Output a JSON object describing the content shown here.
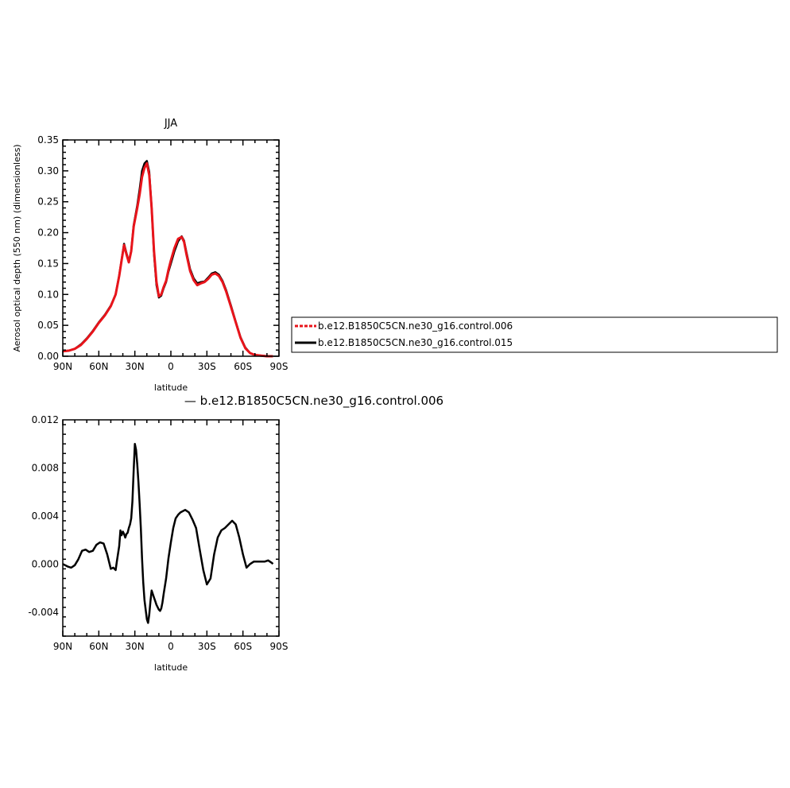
{
  "colors": {
    "control_006": "#e8141b",
    "control_015": "#000000",
    "difference": "#000000",
    "axes": "#000000"
  },
  "legend": {
    "entries": [
      {
        "label": "b.e12.B1850C5CN.ne30_g16.control.006",
        "color": "#e8141b",
        "style": "dashed"
      },
      {
        "label": "b.e12.B1850C5CN.ne30_g16.control.015",
        "color": "#000000",
        "style": "solid"
      }
    ]
  },
  "chart_data": [
    {
      "type": "line",
      "title": "JJA",
      "xlabel": "latitude",
      "ylabel": "Aerosol optical depth (550 nm) (dimensionless)",
      "xlim": [
        90,
        -90
      ],
      "ylim": [
        0,
        0.35
      ],
      "xticks": [
        90,
        60,
        30,
        0,
        -30,
        -60,
        -90
      ],
      "xtick_labels": [
        "90N",
        "60N",
        "30N",
        "0",
        "30S",
        "60S",
        "90S"
      ],
      "yticks": [
        0,
        0.05,
        0.1,
        0.15,
        0.2,
        0.25,
        0.3,
        0.35
      ],
      "ytick_labels": [
        "0.00",
        "0.05",
        "0.10",
        "0.15",
        "0.20",
        "0.25",
        "0.30",
        "0.35"
      ],
      "series": [
        {
          "name": "b.e12.B1850C5CN.ne30_g16.control.006",
          "color": "#e8141b",
          "x": [
            90,
            85,
            80,
            75,
            70,
            65,
            60,
            55,
            50,
            46,
            43,
            41,
            39,
            37,
            35,
            33,
            31,
            28,
            26,
            24,
            22,
            20,
            18,
            16,
            14,
            12,
            10,
            8,
            6,
            4,
            2,
            0,
            -3,
            -6,
            -9,
            -11,
            -13,
            -16,
            -19,
            -22,
            -25,
            -28,
            -31,
            -34,
            -37,
            -40,
            -43,
            -46,
            -50,
            -54,
            -58,
            -62,
            -66,
            -70,
            -75,
            -80,
            -85
          ],
          "y": [
            0.008,
            0.009,
            0.012,
            0.018,
            0.028,
            0.04,
            0.054,
            0.066,
            0.081,
            0.1,
            0.13,
            0.155,
            0.18,
            0.165,
            0.152,
            0.17,
            0.21,
            0.24,
            0.262,
            0.29,
            0.305,
            0.312,
            0.293,
            0.24,
            0.17,
            0.12,
            0.097,
            0.1,
            0.112,
            0.122,
            0.14,
            0.155,
            0.175,
            0.19,
            0.193,
            0.185,
            0.165,
            0.138,
            0.123,
            0.115,
            0.118,
            0.12,
            0.125,
            0.132,
            0.134,
            0.13,
            0.12,
            0.105,
            0.08,
            0.055,
            0.03,
            0.013,
            0.005,
            0.002,
            0.001,
            0.0,
            0.0
          ]
        },
        {
          "name": "b.e12.B1850C5CN.ne30_g16.control.015",
          "color": "#000000",
          "x": [
            90,
            85,
            80,
            75,
            70,
            65,
            60,
            55,
            50,
            46,
            43,
            41,
            39,
            37,
            35,
            33,
            31,
            28,
            26,
            24,
            22,
            20,
            18,
            16,
            14,
            12,
            10,
            8,
            6,
            4,
            2,
            0,
            -3,
            -6,
            -9,
            -11,
            -13,
            -16,
            -19,
            -22,
            -25,
            -28,
            -31,
            -34,
            -37,
            -40,
            -43,
            -46,
            -50,
            -54,
            -58,
            -62,
            -66,
            -70,
            -75,
            -80,
            -85
          ],
          "y": [
            0.008,
            0.009,
            0.012,
            0.019,
            0.029,
            0.041,
            0.055,
            0.067,
            0.082,
            0.1,
            0.131,
            0.156,
            0.182,
            0.167,
            0.153,
            0.171,
            0.212,
            0.244,
            0.27,
            0.3,
            0.312,
            0.316,
            0.298,
            0.24,
            0.165,
            0.115,
            0.095,
            0.098,
            0.11,
            0.12,
            0.137,
            0.15,
            0.17,
            0.186,
            0.194,
            0.187,
            0.168,
            0.141,
            0.126,
            0.118,
            0.12,
            0.121,
            0.127,
            0.134,
            0.136,
            0.132,
            0.122,
            0.107,
            0.082,
            0.056,
            0.031,
            0.014,
            0.005,
            0.002,
            0.001,
            0.0,
            0.0
          ]
        }
      ]
    },
    {
      "type": "line",
      "title": "— b.e12.B1850C5CN.ne30_g16.control.006",
      "xlabel": "latitude",
      "xlim": [
        90,
        -90
      ],
      "ylim": [
        -0.006,
        0.012
      ],
      "xticks": [
        90,
        60,
        30,
        0,
        -30,
        -60,
        -90
      ],
      "xtick_labels": [
        "90N",
        "60N",
        "30N",
        "0",
        "30S",
        "60S",
        "90S"
      ],
      "yticks": [
        -0.004,
        0,
        0.004,
        0.008,
        0.012
      ],
      "ytick_labels": [
        "-0.004",
        "0.000",
        "0.004",
        "0.008",
        "0.012"
      ],
      "series": [
        {
          "color": "#000000",
          "x": [
            90,
            86,
            83,
            80,
            77,
            74,
            71,
            68,
            65,
            62,
            59,
            56,
            53,
            50,
            48,
            46,
            45,
            43,
            42,
            41,
            40,
            39,
            38,
            37,
            36,
            35,
            34,
            33,
            32,
            31,
            30,
            29,
            28,
            27,
            26,
            25,
            24,
            23,
            22,
            21,
            20,
            19,
            18,
            17,
            16,
            15,
            14,
            13,
            12,
            11,
            10,
            9,
            8,
            7,
            6,
            4,
            2,
            0,
            -2,
            -4,
            -6,
            -8,
            -10,
            -12,
            -15,
            -18,
            -21,
            -24,
            -27,
            -30,
            -33,
            -36,
            -39,
            -42,
            -45,
            -48,
            -51,
            -54,
            -57,
            -60,
            -63,
            -66,
            -69,
            -72,
            -75,
            -78,
            -81,
            -84,
            -85
          ],
          "y": [
            0.0,
            -0.0002,
            -0.0003,
            -0.0001,
            0.0004,
            0.0011,
            0.0012,
            0.001,
            0.0011,
            0.0016,
            0.0018,
            0.0017,
            0.0008,
            -0.0004,
            -0.0003,
            -0.0005,
            0.0002,
            0.0015,
            0.0028,
            0.0024,
            0.0027,
            0.0025,
            0.0022,
            0.0025,
            0.0026,
            0.003,
            0.0033,
            0.0038,
            0.0052,
            0.0078,
            0.01,
            0.0095,
            0.0083,
            0.0068,
            0.005,
            0.003,
            0.0005,
            -0.0015,
            -0.003,
            -0.0038,
            -0.0046,
            -0.0049,
            -0.0042,
            -0.0031,
            -0.0022,
            -0.0025,
            -0.0028,
            -0.0031,
            -0.0034,
            -0.0036,
            -0.0038,
            -0.0039,
            -0.0037,
            -0.0032,
            -0.0025,
            -0.0012,
            0.0005,
            0.0018,
            0.003,
            0.0038,
            0.0041,
            0.0043,
            0.0044,
            0.0045,
            0.0043,
            0.0037,
            0.003,
            0.0012,
            -0.0005,
            -0.0017,
            -0.0012,
            0.0008,
            0.0022,
            0.0028,
            0.003,
            0.0033,
            0.0036,
            0.0033,
            0.0022,
            0.0008,
            -0.0003,
            0.0,
            0.0002,
            0.0002,
            0.0002,
            0.0002,
            0.0003,
            0.0001,
            0.0
          ]
        }
      ]
    }
  ]
}
